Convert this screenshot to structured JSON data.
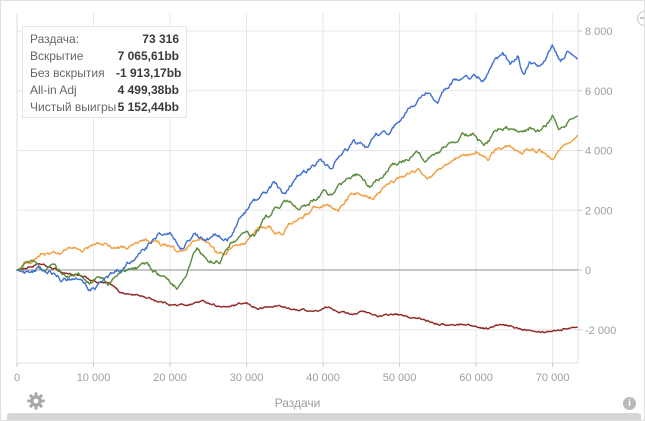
{
  "legend": {
    "rows": [
      {
        "label": "Раздача:",
        "value": "73 316"
      },
      {
        "label": "Вскрытие",
        "value": "7 065,61bb"
      },
      {
        "label": "Без вскрытия",
        "value": "-1 913,17bb"
      },
      {
        "label": "All-in Adj",
        "value": "4 499,38bb"
      },
      {
        "label": "Чистый выигрыш",
        "value": "5 152,44bb"
      }
    ]
  },
  "icons": {
    "bottom_left": "gear-icon",
    "bottom_right": "info-icon",
    "top_right": "circle-minus-icon"
  },
  "colors": {
    "showdown_blue": "#3f6fd1",
    "net_green": "#5a8a3c",
    "allin_orange": "#f29d3d",
    "nonshowdown_red": "#8f2523",
    "zero_line": "#8c8c8c",
    "grid": "#e7e7e7",
    "axis_text": "#9e9e9e"
  },
  "chart_data": {
    "type": "line",
    "title": "",
    "xlabel": "Раздачи",
    "ylabel": "",
    "xlim": [
      0,
      73316
    ],
    "ylim": [
      -3100,
      8550
    ],
    "grid": true,
    "legend_position": "top-left",
    "x_tick_values": [
      0,
      10000,
      20000,
      30000,
      40000,
      50000,
      60000,
      70000
    ],
    "x_ticks": [
      "0",
      "10 000",
      "20 000",
      "30 000",
      "40 000",
      "50 000",
      "60 000",
      "70 000"
    ],
    "y_tick_values": [
      -2000,
      0,
      2000,
      4000,
      6000,
      8000
    ],
    "y_ticks": [
      "-2 000",
      "0",
      "2 000",
      "4 000",
      "6 000",
      "8 000"
    ],
    "series": [
      {
        "key": "nonshowdown",
        "name": "Без вскрытия",
        "color": "#8f2523",
        "final": -1913.17,
        "noise": 55,
        "points": [
          [
            0,
            0
          ],
          [
            1500,
            100
          ],
          [
            3000,
            180
          ],
          [
            4500,
            50
          ],
          [
            6000,
            -80
          ],
          [
            7500,
            -150
          ],
          [
            9000,
            -300
          ],
          [
            10500,
            -420
          ],
          [
            12000,
            -480
          ],
          [
            13500,
            -750
          ],
          [
            15000,
            -820
          ],
          [
            16500,
            -880
          ],
          [
            18000,
            -1000
          ],
          [
            19500,
            -1100
          ],
          [
            21000,
            -1180
          ],
          [
            22500,
            -1150
          ],
          [
            24000,
            -1050
          ],
          [
            25500,
            -1120
          ],
          [
            27000,
            -1250
          ],
          [
            28500,
            -1200
          ],
          [
            30000,
            -1150
          ],
          [
            31500,
            -1300
          ],
          [
            33000,
            -1250
          ],
          [
            34500,
            -1200
          ],
          [
            36000,
            -1350
          ],
          [
            37500,
            -1320
          ],
          [
            39000,
            -1380
          ],
          [
            40500,
            -1280
          ],
          [
            42000,
            -1350
          ],
          [
            43500,
            -1450
          ],
          [
            45000,
            -1380
          ],
          [
            46500,
            -1500
          ],
          [
            48000,
            -1550
          ],
          [
            49500,
            -1480
          ],
          [
            51000,
            -1600
          ],
          [
            52500,
            -1650
          ],
          [
            54000,
            -1700
          ],
          [
            55500,
            -1780
          ],
          [
            57000,
            -1850
          ],
          [
            58500,
            -1800
          ],
          [
            60000,
            -1900
          ],
          [
            61500,
            -1950
          ],
          [
            63000,
            -1850
          ],
          [
            64500,
            -1920
          ],
          [
            66000,
            -1980
          ],
          [
            67500,
            -1950
          ],
          [
            69000,
            -2020
          ],
          [
            70500,
            -1980
          ],
          [
            72000,
            -1930
          ],
          [
            73316,
            -1913.17
          ]
        ]
      },
      {
        "key": "allin-adj",
        "name": "All-in Adj",
        "color": "#f29d3d",
        "final": 4499.38,
        "noise": 100,
        "points": [
          [
            0,
            0
          ],
          [
            1000,
            200
          ],
          [
            2500,
            450
          ],
          [
            4000,
            550
          ],
          [
            5500,
            500
          ],
          [
            7000,
            700
          ],
          [
            8500,
            650
          ],
          [
            10000,
            800
          ],
          [
            11500,
            850
          ],
          [
            13000,
            750
          ],
          [
            14500,
            700
          ],
          [
            16000,
            900
          ],
          [
            17500,
            950
          ],
          [
            19000,
            800
          ],
          [
            20500,
            700
          ],
          [
            21500,
            500
          ],
          [
            23000,
            850
          ],
          [
            24500,
            900
          ],
          [
            26000,
            550
          ],
          [
            27000,
            450
          ],
          [
            28500,
            800
          ],
          [
            30000,
            1000
          ],
          [
            31500,
            1350
          ],
          [
            33000,
            1400
          ],
          [
            34500,
            1200
          ],
          [
            36000,
            1600
          ],
          [
            37500,
            1850
          ],
          [
            39000,
            2100
          ],
          [
            40500,
            2250
          ],
          [
            42000,
            2000
          ],
          [
            43500,
            2400
          ],
          [
            45000,
            2600
          ],
          [
            46500,
            2450
          ],
          [
            48000,
            2800
          ],
          [
            49500,
            3000
          ],
          [
            51000,
            3200
          ],
          [
            52500,
            3350
          ],
          [
            54000,
            3100
          ],
          [
            55500,
            3350
          ],
          [
            57000,
            3650
          ],
          [
            58500,
            3850
          ],
          [
            60000,
            3950
          ],
          [
            61500,
            3700
          ],
          [
            63000,
            4050
          ],
          [
            64500,
            4150
          ],
          [
            66000,
            3900
          ],
          [
            67500,
            4050
          ],
          [
            69000,
            4000
          ],
          [
            70000,
            3800
          ],
          [
            71500,
            4250
          ],
          [
            72500,
            4300
          ],
          [
            73316,
            4499.38
          ]
        ]
      },
      {
        "key": "net",
        "name": "Чистый выигрыш",
        "color": "#5a8a3c",
        "final": 5152.44,
        "noise": 115,
        "points": [
          [
            0,
            0
          ],
          [
            2000,
            150
          ],
          [
            3500,
            -100
          ],
          [
            5000,
            100
          ],
          [
            6500,
            -250
          ],
          [
            8000,
            -200
          ],
          [
            9500,
            -550
          ],
          [
            10500,
            -300
          ],
          [
            12000,
            -450
          ],
          [
            13500,
            -100
          ],
          [
            15000,
            50
          ],
          [
            16500,
            150
          ],
          [
            18000,
            -50
          ],
          [
            19500,
            -400
          ],
          [
            21000,
            -550
          ],
          [
            22500,
            200
          ],
          [
            23500,
            650
          ],
          [
            25000,
            250
          ],
          [
            26500,
            300
          ],
          [
            28000,
            900
          ],
          [
            29500,
            1200
          ],
          [
            31000,
            1100
          ],
          [
            32500,
            1700
          ],
          [
            34000,
            2100
          ],
          [
            35500,
            2250
          ],
          [
            37000,
            1900
          ],
          [
            38500,
            2250
          ],
          [
            40000,
            2600
          ],
          [
            41500,
            2500
          ],
          [
            43000,
            2900
          ],
          [
            44500,
            3150
          ],
          [
            46000,
            2750
          ],
          [
            47500,
            3100
          ],
          [
            49000,
            3500
          ],
          [
            50500,
            3700
          ],
          [
            52000,
            3950
          ],
          [
            53500,
            3700
          ],
          [
            55000,
            3900
          ],
          [
            56500,
            4350
          ],
          [
            58000,
            4500
          ],
          [
            59500,
            4600
          ],
          [
            61000,
            4250
          ],
          [
            62500,
            4600
          ],
          [
            64000,
            4850
          ],
          [
            65500,
            4500
          ],
          [
            67000,
            4750
          ],
          [
            68500,
            4600
          ],
          [
            70000,
            5150
          ],
          [
            71000,
            4800
          ],
          [
            72000,
            5000
          ],
          [
            73316,
            5152.44
          ]
        ]
      },
      {
        "key": "showdown",
        "name": "Вскрытие",
        "color": "#3f6fd1",
        "final": 7065.61,
        "noise": 115,
        "points": [
          [
            0,
            0
          ],
          [
            1500,
            -150
          ],
          [
            3000,
            80
          ],
          [
            4500,
            -120
          ],
          [
            6000,
            -350
          ],
          [
            8000,
            -250
          ],
          [
            9500,
            -650
          ],
          [
            11000,
            -500
          ],
          [
            12500,
            -150
          ],
          [
            14000,
            100
          ],
          [
            15500,
            450
          ],
          [
            17000,
            800
          ],
          [
            18500,
            1150
          ],
          [
            20000,
            1300
          ],
          [
            21500,
            850
          ],
          [
            23000,
            1250
          ],
          [
            24500,
            1000
          ],
          [
            26000,
            1150
          ],
          [
            27500,
            950
          ],
          [
            29000,
            1600
          ],
          [
            30500,
            2100
          ],
          [
            32000,
            2400
          ],
          [
            33500,
            2800
          ],
          [
            35000,
            2550
          ],
          [
            36500,
            3150
          ],
          [
            38000,
            3400
          ],
          [
            39500,
            3650
          ],
          [
            41000,
            3350
          ],
          [
            42500,
            3950
          ],
          [
            44000,
            4250
          ],
          [
            45500,
            4050
          ],
          [
            47000,
            4500
          ],
          [
            48500,
            4650
          ],
          [
            50000,
            5050
          ],
          [
            51500,
            5350
          ],
          [
            53000,
            5800
          ],
          [
            54000,
            6050
          ],
          [
            55000,
            5700
          ],
          [
            56500,
            6250
          ],
          [
            58000,
            6500
          ],
          [
            59500,
            6450
          ],
          [
            61000,
            6350
          ],
          [
            62500,
            6950
          ],
          [
            63500,
            7150
          ],
          [
            64500,
            6800
          ],
          [
            65500,
            7200
          ],
          [
            66200,
            6500
          ],
          [
            67000,
            6950
          ],
          [
            68000,
            6700
          ],
          [
            69000,
            7000
          ],
          [
            70000,
            7400
          ],
          [
            71000,
            7000
          ],
          [
            72000,
            7250
          ],
          [
            73316,
            7065.61
          ]
        ]
      }
    ]
  }
}
